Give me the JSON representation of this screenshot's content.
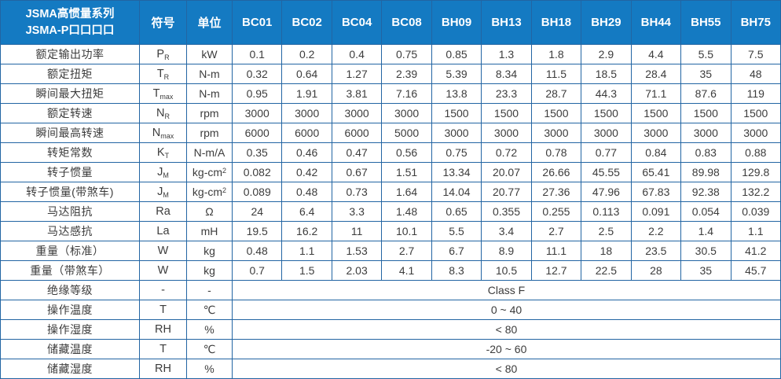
{
  "table": {
    "title_line1": "JSMA高惯量系列",
    "title_line2": "JSMA-P口口口口",
    "symbol_header": "符号",
    "unit_header": "单位",
    "models": [
      "BC01",
      "BC02",
      "BC04",
      "BC08",
      "BH09",
      "BH13",
      "BH18",
      "BH29",
      "BH44",
      "BH55",
      "BH75"
    ],
    "rows": [
      {
        "label": "额定输出功率",
        "symbol": "P_R",
        "unit": "kW",
        "values": [
          "0.1",
          "0.2",
          "0.4",
          "0.75",
          "0.85",
          "1.3",
          "1.8",
          "2.9",
          "4.4",
          "5.5",
          "7.5"
        ]
      },
      {
        "label": "额定扭矩",
        "symbol": "T_R",
        "unit": "N-m",
        "values": [
          "0.32",
          "0.64",
          "1.27",
          "2.39",
          "5.39",
          "8.34",
          "11.5",
          "18.5",
          "28.4",
          "35",
          "48"
        ]
      },
      {
        "label": "瞬间最大扭矩",
        "symbol": "T_max",
        "unit": "N-m",
        "values": [
          "0.95",
          "1.91",
          "3.81",
          "7.16",
          "13.8",
          "23.3",
          "28.7",
          "44.3",
          "71.1",
          "87.6",
          "119"
        ]
      },
      {
        "label": "额定转速",
        "symbol": "N_R",
        "unit": "rpm",
        "values": [
          "3000",
          "3000",
          "3000",
          "3000",
          "1500",
          "1500",
          "1500",
          "1500",
          "1500",
          "1500",
          "1500"
        ]
      },
      {
        "label": "瞬间最高转速",
        "symbol": "N_max",
        "unit": "rpm",
        "values": [
          "6000",
          "6000",
          "6000",
          "5000",
          "3000",
          "3000",
          "3000",
          "3000",
          "3000",
          "3000",
          "3000"
        ]
      },
      {
        "label": "转矩常数",
        "symbol": "K_T",
        "unit": "N-m/A",
        "values": [
          "0.35",
          "0.46",
          "0.47",
          "0.56",
          "0.75",
          "0.72",
          "0.78",
          "0.77",
          "0.84",
          "0.83",
          "0.88"
        ]
      },
      {
        "label": "转子惯量",
        "symbol": "J_M",
        "unit": "kg-cm^2",
        "values": [
          "0.082",
          "0.42",
          "0.67",
          "1.51",
          "13.34",
          "20.07",
          "26.66",
          "45.55",
          "65.41",
          "89.98",
          "129.8"
        ]
      },
      {
        "label": "转子惯量(带煞车)",
        "symbol": "J_M",
        "unit": "kg-cm^2",
        "values": [
          "0.089",
          "0.48",
          "0.73",
          "1.64",
          "14.04",
          "20.77",
          "27.36",
          "47.96",
          "67.83",
          "92.38",
          "132.2"
        ]
      },
      {
        "label": "马达阻抗",
        "symbol": "Ra",
        "unit": "Ω",
        "values": [
          "24",
          "6.4",
          "3.3",
          "1.48",
          "0.65",
          "0.355",
          "0.255",
          "0.113",
          "0.091",
          "0.054",
          "0.039"
        ]
      },
      {
        "label": "马达感抗",
        "symbol": "La",
        "unit": "mH",
        "values": [
          "19.5",
          "16.2",
          "11",
          "10.1",
          "5.5",
          "3.4",
          "2.7",
          "2.5",
          "2.2",
          "1.4",
          "1.1"
        ]
      },
      {
        "label": "重量（标准）",
        "symbol": "W",
        "unit": "kg",
        "values": [
          "0.48",
          "1.1",
          "1.53",
          "2.7",
          "6.7",
          "8.9",
          "11.1",
          "18",
          "23.5",
          "30.5",
          "41.2"
        ]
      },
      {
        "label": "重量（带煞车）",
        "symbol": "W",
        "unit": "kg",
        "values": [
          "0.7",
          "1.5",
          "2.03",
          "4.1",
          "8.3",
          "10.5",
          "12.7",
          "22.5",
          "28",
          "35",
          "45.7"
        ]
      },
      {
        "label": "绝缘等级",
        "symbol": "-",
        "unit": "-",
        "merged": "Class F"
      },
      {
        "label": "操作温度",
        "symbol": "T",
        "unit": "℃",
        "merged": "0 ~ 40"
      },
      {
        "label": "操作湿度",
        "symbol": "RH",
        "unit": "%",
        "merged": "< 80"
      },
      {
        "label": "储藏温度",
        "symbol": "T",
        "unit": "℃",
        "merged": "-20 ~ 60"
      },
      {
        "label": "储藏湿度",
        "symbol": "RH",
        "unit": "%",
        "merged": "< 80"
      }
    ]
  },
  "colors": {
    "header_bg": "#147ac2",
    "header_text": "#ffffff",
    "header_border": "#0d5e9e",
    "grid_border": "#2265a3",
    "body_text": "#3c3c3c"
  }
}
